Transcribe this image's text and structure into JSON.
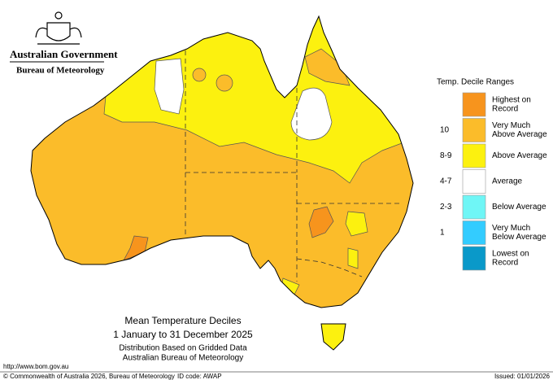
{
  "header": {
    "government": "Australian Government",
    "agency": "Bureau of Meteorology"
  },
  "legend": {
    "title": "Temp. Decile Ranges",
    "items": [
      {
        "label": [
          "Highest on",
          "Record"
        ],
        "color": "#f7941d"
      },
      {
        "range": "10",
        "label": [
          "Very Much",
          "Above Average"
        ],
        "color": "#fbbc2a"
      },
      {
        "range": "8-9",
        "label": [
          "Above Average"
        ],
        "color": "#fcf10f"
      },
      {
        "range": "4-7",
        "label": [
          "Average"
        ],
        "color": "#ffffff"
      },
      {
        "range": "2-3",
        "label": [
          "Below Average"
        ],
        "color": "#6ff6f6"
      },
      {
        "range": "1",
        "label": [
          "Very Much",
          "Below Average"
        ],
        "color": "#33ccff"
      },
      {
        "label": [
          "Lowest on",
          "Record"
        ],
        "color": "#0a99c9"
      }
    ]
  },
  "caption": {
    "title": "Mean Temperature Deciles",
    "period": "1 January to 31 December 2025",
    "note": "Distribution Based on Gridded Data",
    "source": "Australian Bureau of Meteorology"
  },
  "footer": {
    "url": "http://www.bom.gov.au",
    "copyright": "© Commonwealth of Australia 2026, Bureau of Meteorology",
    "id_code": "ID code: AWAP",
    "issued": "Issued: 01/01/2026"
  }
}
